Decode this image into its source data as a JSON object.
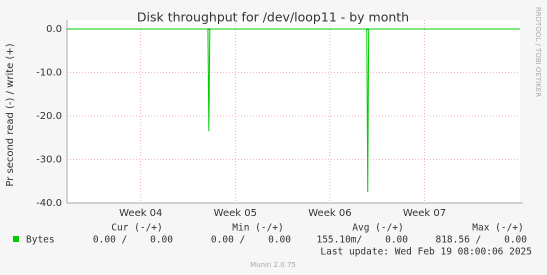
{
  "chart_data": {
    "type": "line",
    "title": "Disk throughput for /dev/loop11 - by month",
    "y_label": "Pr second read (-) / write (+)",
    "side_text": "RRDTOOL / TOBI OETIKER",
    "xlim": [
      3.22,
      8.01
    ],
    "xticks": [
      {
        "value": 4,
        "label": "Week 04"
      },
      {
        "value": 5,
        "label": "Week 05"
      },
      {
        "value": 6,
        "label": "Week 06"
      },
      {
        "value": 7,
        "label": "Week 07"
      }
    ],
    "ylim": [
      -40,
      0
    ],
    "yticks": [
      {
        "value": 0,
        "label": "0.0"
      },
      {
        "value": -10,
        "label": "-10.0"
      },
      {
        "value": -20,
        "label": "-20.0"
      },
      {
        "value": -30,
        "label": "-30.0"
      },
      {
        "value": -40,
        "label": "-40.0"
      }
    ],
    "grid": true,
    "series": [
      {
        "name": "Bytes",
        "color": "#00cc00",
        "x": [
          3.22,
          4.71,
          4.72,
          4.73,
          6.39,
          6.4,
          6.41,
          8.01
        ],
        "values": [
          0,
          0,
          -23.5,
          0,
          0,
          -37.5,
          0,
          0
        ]
      }
    ],
    "legend_table": {
      "headers": [
        "Cur (-/+)",
        "Min (-/+)",
        "Avg (-/+)",
        "Max (-/+)"
      ],
      "rows": [
        [
          "0.00 /    0.00",
          "0.00 /    0.00",
          "155.10m/    0.00",
          "818.56 /    0.00"
        ]
      ]
    },
    "last_update": "Last update: Wed Feb 19 08:00:06 2025",
    "footer": "Munin 2.0.75"
  }
}
